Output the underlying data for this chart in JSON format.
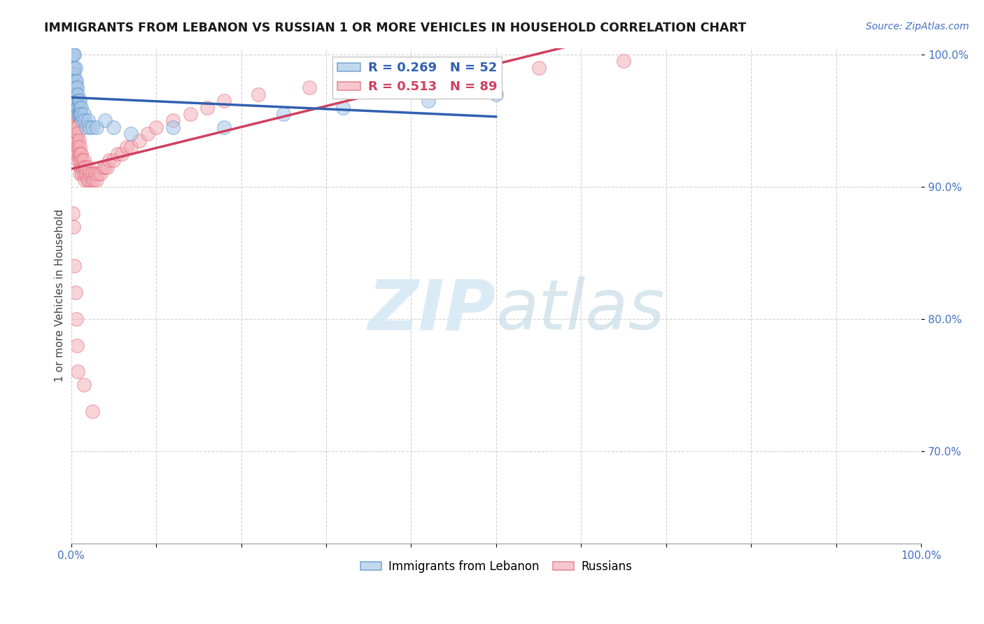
{
  "title": "IMMIGRANTS FROM LEBANON VS RUSSIAN 1 OR MORE VEHICLES IN HOUSEHOLD CORRELATION CHART",
  "source": "Source: ZipAtlas.com",
  "ylabel": "1 or more Vehicles in Household",
  "xlim": [
    0.0,
    1.0
  ],
  "ylim": [
    0.63,
    1.005
  ],
  "x_tick_positions": [
    0.0,
    1.0
  ],
  "x_tick_labels": [
    "0.0%",
    "100.0%"
  ],
  "y_ticks": [
    0.7,
    0.8,
    0.9,
    1.0
  ],
  "y_tick_labels": [
    "70.0%",
    "80.0%",
    "90.0%",
    "100.0%"
  ],
  "legend_r_blue": "R = 0.269",
  "legend_n_blue": "N = 52",
  "legend_r_pink": "R = 0.513",
  "legend_n_pink": "N = 89",
  "blue_color": "#a8c8e8",
  "pink_color": "#f4b0b8",
  "blue_edge_color": "#5590c8",
  "pink_edge_color": "#e06878",
  "blue_line_color": "#3060b0",
  "pink_line_color": "#d04060",
  "tick_color": "#4472c4",
  "watermark_color": "#d5e8f5",
  "lebanon_x": [
    0.001,
    0.002,
    0.002,
    0.002,
    0.003,
    0.003,
    0.003,
    0.003,
    0.003,
    0.004,
    0.004,
    0.004,
    0.004,
    0.005,
    0.005,
    0.005,
    0.005,
    0.006,
    0.006,
    0.006,
    0.006,
    0.007,
    0.007,
    0.007,
    0.008,
    0.008,
    0.008,
    0.009,
    0.009,
    0.01,
    0.01,
    0.01,
    0.011,
    0.012,
    0.012,
    0.013,
    0.015,
    0.016,
    0.018,
    0.02,
    0.022,
    0.025,
    0.03,
    0.04,
    0.05,
    0.07,
    0.12,
    0.18,
    0.25,
    0.32,
    0.42,
    0.5
  ],
  "lebanon_y": [
    1.0,
    1.0,
    0.99,
    0.98,
    1.0,
    0.99,
    0.98,
    0.975,
    0.97,
    1.0,
    0.99,
    0.985,
    0.975,
    0.99,
    0.98,
    0.97,
    0.965,
    0.98,
    0.975,
    0.97,
    0.965,
    0.975,
    0.965,
    0.96,
    0.97,
    0.96,
    0.955,
    0.965,
    0.955,
    0.965,
    0.96,
    0.955,
    0.955,
    0.96,
    0.955,
    0.95,
    0.955,
    0.95,
    0.945,
    0.95,
    0.945,
    0.945,
    0.945,
    0.95,
    0.945,
    0.94,
    0.945,
    0.945,
    0.955,
    0.96,
    0.965,
    0.97
  ],
  "russian_x": [
    0.001,
    0.001,
    0.002,
    0.002,
    0.002,
    0.003,
    0.003,
    0.003,
    0.003,
    0.003,
    0.003,
    0.004,
    0.004,
    0.004,
    0.004,
    0.005,
    0.005,
    0.005,
    0.005,
    0.006,
    0.006,
    0.006,
    0.006,
    0.007,
    0.007,
    0.007,
    0.008,
    0.008,
    0.008,
    0.009,
    0.009,
    0.01,
    0.01,
    0.01,
    0.011,
    0.011,
    0.012,
    0.012,
    0.013,
    0.013,
    0.014,
    0.015,
    0.015,
    0.016,
    0.016,
    0.017,
    0.018,
    0.019,
    0.02,
    0.021,
    0.022,
    0.024,
    0.025,
    0.027,
    0.028,
    0.03,
    0.032,
    0.035,
    0.038,
    0.04,
    0.042,
    0.045,
    0.05,
    0.055,
    0.06,
    0.065,
    0.07,
    0.08,
    0.09,
    0.1,
    0.12,
    0.14,
    0.16,
    0.18,
    0.22,
    0.28,
    0.35,
    0.45,
    0.55,
    0.65,
    0.002,
    0.003,
    0.004,
    0.005,
    0.006,
    0.007,
    0.008,
    0.015,
    0.025
  ],
  "russian_y": [
    0.965,
    0.955,
    0.97,
    0.96,
    0.95,
    0.975,
    0.965,
    0.955,
    0.945,
    0.935,
    0.925,
    0.965,
    0.955,
    0.945,
    0.935,
    0.96,
    0.95,
    0.94,
    0.93,
    0.955,
    0.945,
    0.935,
    0.925,
    0.945,
    0.935,
    0.925,
    0.94,
    0.93,
    0.92,
    0.935,
    0.925,
    0.93,
    0.92,
    0.91,
    0.925,
    0.915,
    0.925,
    0.915,
    0.92,
    0.91,
    0.915,
    0.92,
    0.91,
    0.915,
    0.905,
    0.915,
    0.91,
    0.905,
    0.915,
    0.905,
    0.91,
    0.905,
    0.91,
    0.905,
    0.91,
    0.905,
    0.91,
    0.91,
    0.915,
    0.915,
    0.915,
    0.92,
    0.92,
    0.925,
    0.925,
    0.93,
    0.93,
    0.935,
    0.94,
    0.945,
    0.95,
    0.955,
    0.96,
    0.965,
    0.97,
    0.975,
    0.98,
    0.985,
    0.99,
    0.995,
    0.88,
    0.87,
    0.84,
    0.82,
    0.8,
    0.78,
    0.76,
    0.75,
    0.73
  ]
}
